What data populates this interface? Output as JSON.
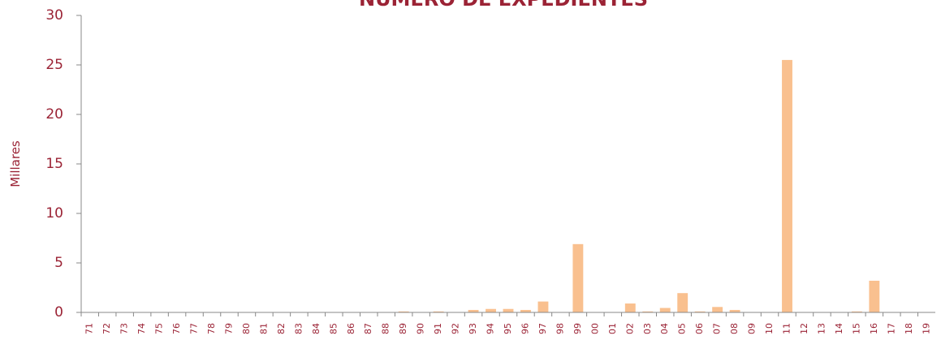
{
  "chart_data": {
    "type": "bar",
    "title": "NÚMERO DE EXPEDIENTES",
    "y_label": "Millares",
    "categories": [
      "71",
      "72",
      "73",
      "74",
      "75",
      "76",
      "77",
      "78",
      "79",
      "80",
      "81",
      "82",
      "83",
      "84",
      "85",
      "86",
      "87",
      "88",
      "89",
      "90",
      "91",
      "92",
      "93",
      "94",
      "95",
      "96",
      "97",
      "98",
      "99",
      "00",
      "01",
      "02",
      "03",
      "04",
      "05",
      "06",
      "07",
      "08",
      "09",
      "10",
      "11",
      "12",
      "13",
      "14",
      "15",
      "16",
      "17",
      "18",
      "19"
    ],
    "values": [
      0,
      0,
      0,
      0,
      0,
      0,
      0,
      0,
      0,
      0,
      0,
      0,
      0,
      0,
      0,
      0,
      0,
      0,
      0.1,
      0,
      0.1,
      0,
      0.25,
      0.35,
      0.35,
      0.25,
      1.1,
      0,
      6.9,
      0,
      0,
      0.9,
      0.1,
      0.45,
      1.95,
      0.1,
      0.55,
      0.25,
      0,
      0,
      25.5,
      0,
      0,
      0,
      0.1,
      3.2,
      0,
      0,
      0
    ],
    "color": "#f9c08f",
    "ylim": [
      0,
      30
    ],
    "yticks": [
      0,
      5,
      10,
      15,
      20,
      25,
      30
    ]
  }
}
